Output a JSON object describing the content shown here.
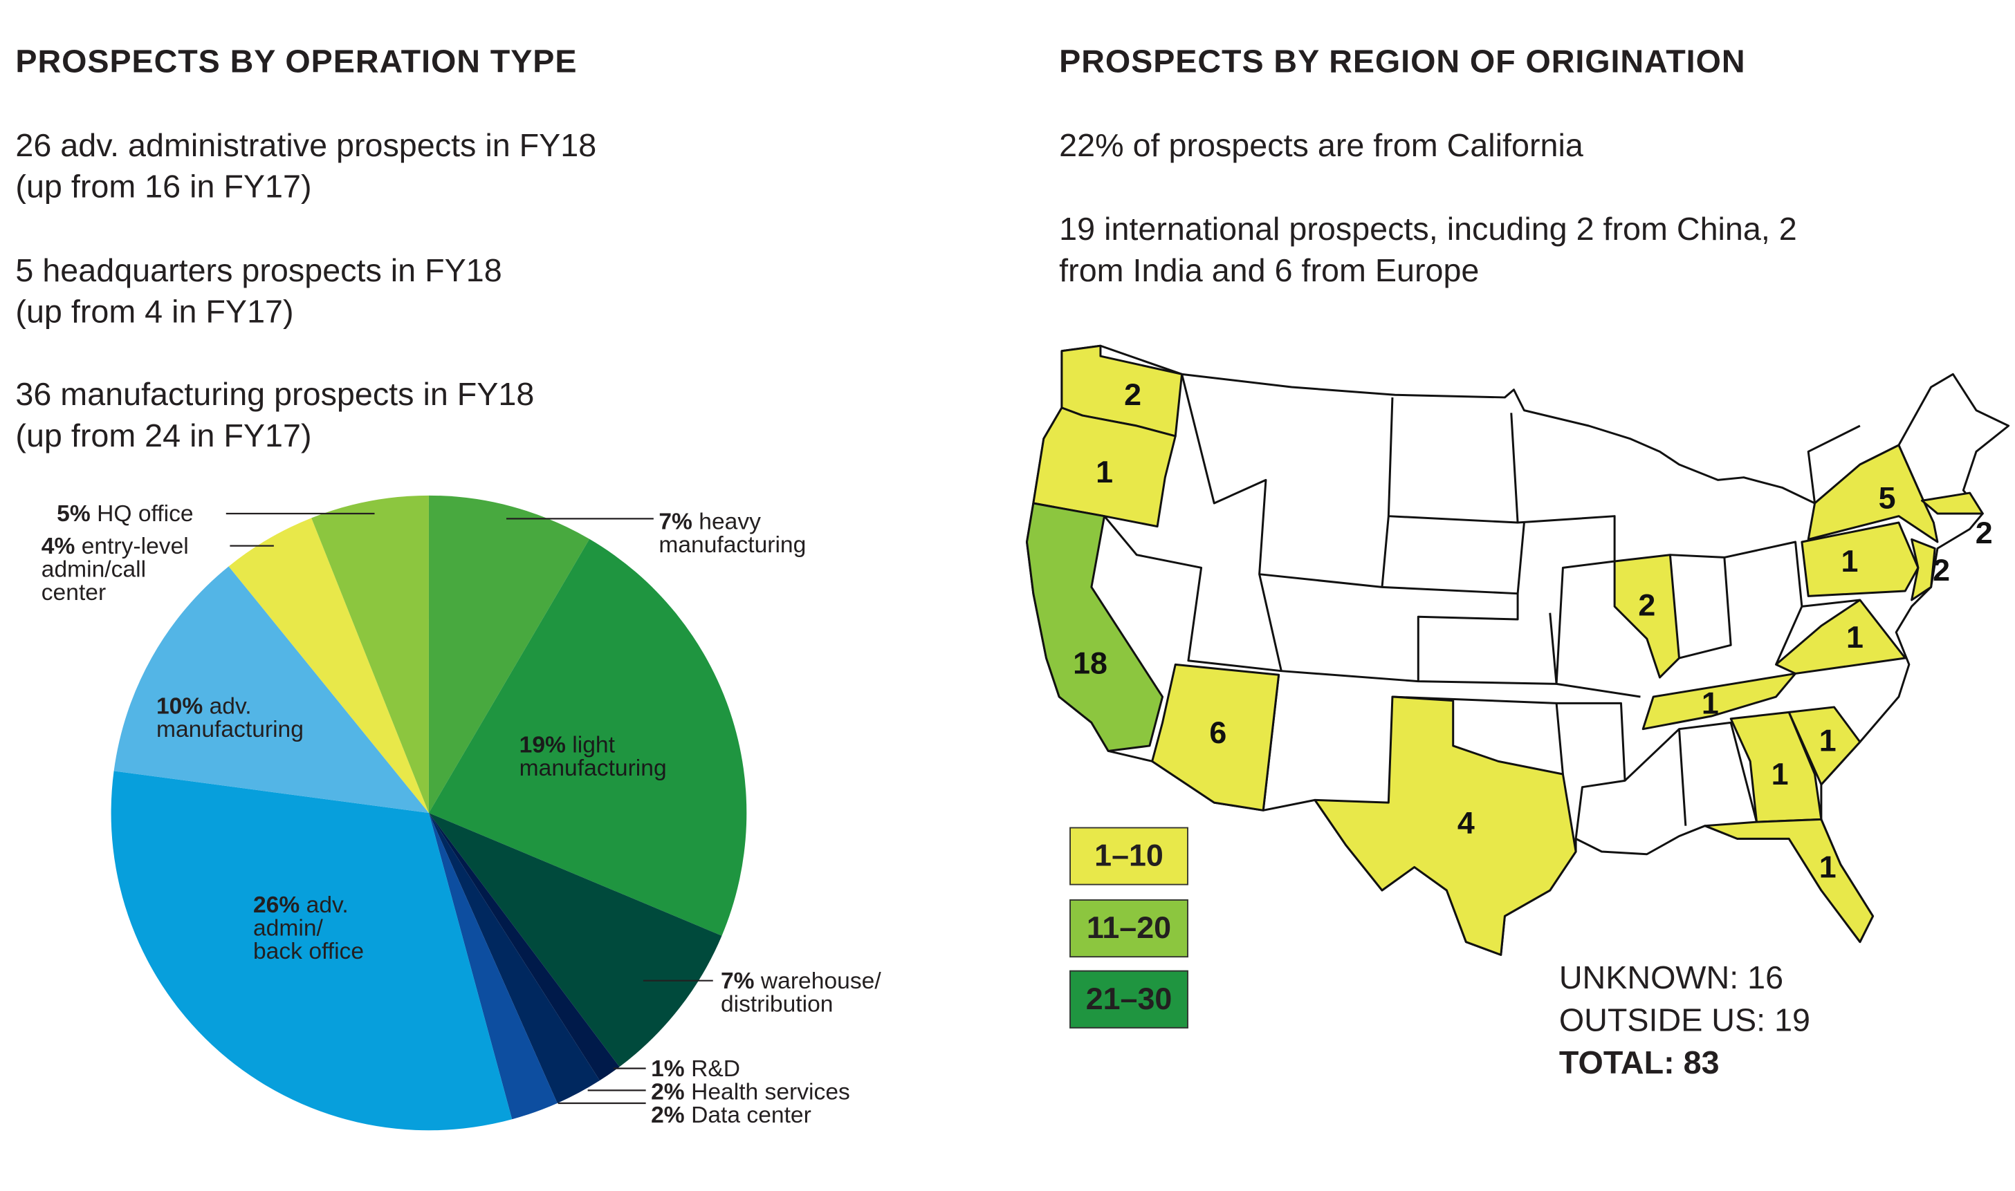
{
  "left": {
    "title": "PROSPECTS BY OPERATION TYPE",
    "paragraphs": [
      "26 adv. administrative prospects in FY18\n(up from 16 in FY17)",
      "5 headquarters prospects in FY18\n(up from 4 in FY17)",
      "36 manufacturing prospects in FY18\n(up from 24 in FY17)"
    ]
  },
  "right": {
    "title": "PROSPECTS BY REGION OF ORIGINATION",
    "paragraphs": [
      "22% of prospects are from California",
      "19 international prospects, incuding 2 from China, 2\nfrom India and 6 from Europe"
    ]
  },
  "chart_data": [
    {
      "type": "pie",
      "title": "PROSPECTS BY OPERATION TYPE",
      "start": "top, clockwise",
      "slices": [
        {
          "pct": "7%",
          "label": "heavy\nmanufacturing",
          "value": 7,
          "color": "#48a93f"
        },
        {
          "pct": "19%",
          "label": "light\nmanufacturing",
          "value": 19,
          "color": "#1f9540"
        },
        {
          "pct": "7%",
          "label": "warehouse/\ndistribution",
          "value": 7,
          "color": "#004a3c"
        },
        {
          "pct": "1%",
          "label": "R&D",
          "value": 1,
          "color": "#001a4a"
        },
        {
          "pct": "2%",
          "label": "Health services",
          "value": 2,
          "color": "#00285f"
        },
        {
          "pct": "2%",
          "label": "Data center",
          "value": 2,
          "color": "#0d4ea0"
        },
        {
          "pct": "26%",
          "label": "adv.\nadmin/\nback office",
          "value": 26,
          "color": "#079fdc"
        },
        {
          "pct": "10%",
          "label": "adv.\nmanufacturing",
          "value": 10,
          "color": "#53b5e6"
        },
        {
          "pct": "4%",
          "label": "entry-level\nadmin/call\ncenter",
          "value": 4,
          "color": "#e8e84a"
        },
        {
          "pct": "5%",
          "label": "HQ office",
          "value": 5,
          "color": "#8cc63f"
        }
      ]
    },
    {
      "type": "choropleth",
      "title": "PROSPECTS BY REGION OF ORIGINATION",
      "states": [
        {
          "state": "WA",
          "value": 2
        },
        {
          "state": "OR",
          "value": 1
        },
        {
          "state": "CA",
          "value": 18
        },
        {
          "state": "AZ",
          "value": 6
        },
        {
          "state": "TX",
          "value": 4
        },
        {
          "state": "IL",
          "value": 2
        },
        {
          "state": "NY",
          "value": 5
        },
        {
          "state": "MA",
          "value": 2
        },
        {
          "state": "PA",
          "value": 1
        },
        {
          "state": "NJ",
          "value": 2
        },
        {
          "state": "VA",
          "value": 1
        },
        {
          "state": "TN",
          "value": 1
        },
        {
          "state": "SC",
          "value": 1
        },
        {
          "state": "GA",
          "value": 1
        },
        {
          "state": "FL",
          "value": 1
        }
      ],
      "legend": [
        {
          "label": "1–10",
          "color": "#e8e84a"
        },
        {
          "label": "11–20",
          "color": "#8cc63f"
        },
        {
          "label": "21–30",
          "color": "#1f9540"
        }
      ]
    }
  ],
  "summary": {
    "unknown": "UNKNOWN: 16",
    "outside": "OUTSIDE US: 19",
    "total": "TOTAL: 83"
  }
}
